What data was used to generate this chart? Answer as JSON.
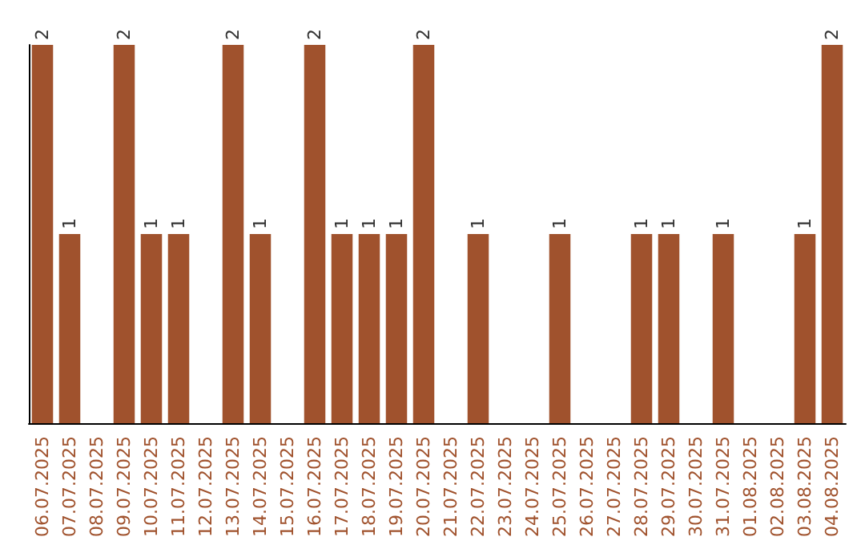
{
  "chart_data": {
    "type": "bar",
    "categories": [
      "06.07.2025",
      "07.07.2025",
      "08.07.2025",
      "09.07.2025",
      "10.07.2025",
      "11.07.2025",
      "12.07.2025",
      "13.07.2025",
      "14.07.2025",
      "15.07.2025",
      "16.07.2025",
      "17.07.2025",
      "18.07.2025",
      "19.07.2025",
      "20.07.2025",
      "21.07.2025",
      "22.07.2025",
      "23.07.2025",
      "24.07.2025",
      "25.07.2025",
      "26.07.2025",
      "27.07.2025",
      "28.07.2025",
      "29.07.2025",
      "30.07.2025",
      "31.07.2025",
      "01.08.2025",
      "02.08.2025",
      "03.08.2025",
      "04.08.2025"
    ],
    "values": [
      2,
      1,
      null,
      2,
      1,
      1,
      null,
      2,
      1,
      null,
      2,
      1,
      1,
      1,
      2,
      null,
      1,
      null,
      null,
      1,
      null,
      null,
      1,
      1,
      null,
      1,
      null,
      null,
      1,
      2
    ],
    "color": "#a0522d",
    "data_labels": true,
    "tick_labels": "x"
  }
}
